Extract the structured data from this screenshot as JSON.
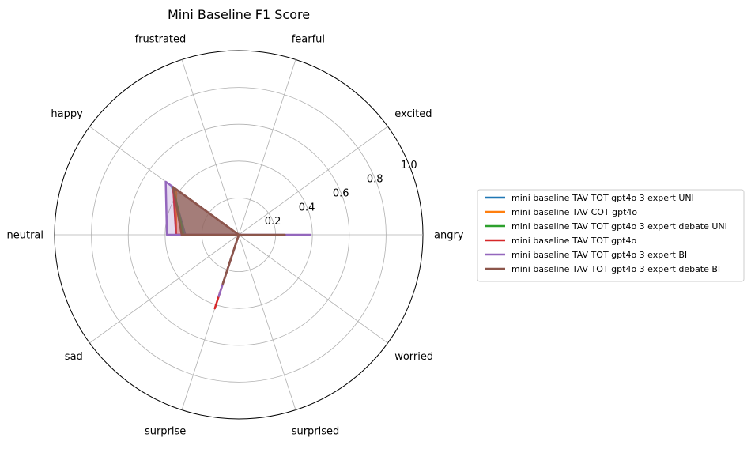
{
  "chart_data": {
    "type": "radar",
    "title": "Mini Baseline F1 Score",
    "categories": [
      "angry",
      "excited",
      "fearful",
      "frustrated",
      "happy",
      "neutral",
      "sad",
      "surprise",
      "surprised",
      "worried"
    ],
    "radial_ticks": [
      0.2,
      0.4,
      0.6,
      0.8,
      1.0
    ],
    "radial_tick_labels": [
      "0.2",
      "0.4",
      "0.6",
      "0.8",
      "1.0"
    ],
    "rlim": [
      0,
      1.0
    ],
    "grid": true,
    "legend_position": "right",
    "series": [
      {
        "name": "mini baseline TAV TOT gpt4o 3 expert UNI",
        "color": "#1f77b4",
        "values": [
          0.0,
          0.0,
          0.0,
          0.0,
          0.45,
          0.29,
          0.0,
          0.28,
          0.0,
          0.0
        ]
      },
      {
        "name": "mini baseline TAV COT gpt4o",
        "color": "#ff7f0e",
        "values": [
          0.0,
          0.0,
          0.0,
          0.0,
          0.42,
          0.34,
          0.0,
          0.28,
          0.0,
          0.0
        ]
      },
      {
        "name": "mini baseline TAV TOT gpt4o 3 expert debate UNI",
        "color": "#2ca02c",
        "values": [
          0.0,
          0.0,
          0.0,
          0.0,
          0.44,
          0.3,
          0.0,
          0.28,
          0.0,
          0.0
        ]
      },
      {
        "name": "mini baseline TAV TOT gpt4o",
        "color": "#d62728",
        "values": [
          0.0,
          0.0,
          0.0,
          0.0,
          0.44,
          0.34,
          0.0,
          0.42,
          0.0,
          0.0
        ]
      },
      {
        "name": "mini baseline TAV TOT gpt4o 3 expert BI",
        "color": "#9467bd",
        "values": [
          0.39,
          0.0,
          0.0,
          0.0,
          0.49,
          0.39,
          0.0,
          0.35,
          0.0,
          0.0
        ]
      },
      {
        "name": "mini baseline TAV TOT gpt4o 3 expert debate BI",
        "color": "#8c564b",
        "values": [
          0.25,
          0.0,
          0.0,
          0.0,
          0.44,
          0.31,
          0.0,
          0.28,
          0.0,
          0.0
        ]
      }
    ]
  }
}
